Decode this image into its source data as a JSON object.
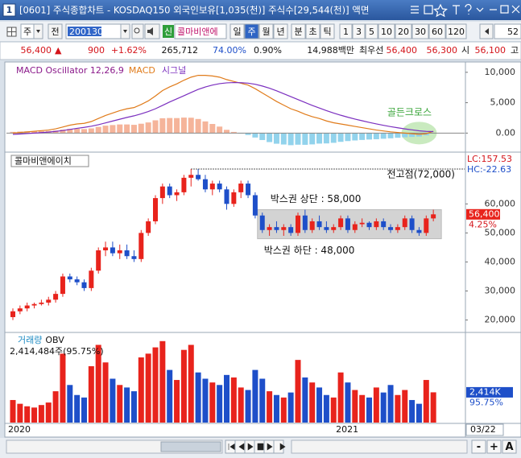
{
  "window": {
    "title": "[0601] 주식종합차트 - KOSDAQ150 외국인보유[1,035(천)] 주식수[29,544(천)] 액면",
    "number": "1"
  },
  "toolbar": {
    "unit": "주",
    "prev": "전",
    "code": "200130",
    "badge": "신",
    "name": "콜마비앤에",
    "periods": [
      "일",
      "주",
      "월",
      "년",
      "분",
      "초",
      "틱"
    ],
    "selected_period": "주",
    "intervals": [
      "1",
      "3",
      "5",
      "10",
      "20",
      "30",
      "60",
      "120"
    ],
    "count": "52"
  },
  "quote": {
    "price": "56,400",
    "arrow": "▲",
    "change": "900",
    "change_pct": "+1.62%",
    "volume": "265,712",
    "ratio1": "74.00%",
    "ratio2": "0.90%",
    "amount": "14,988백만",
    "best_label": "최우선",
    "ask": "56,400",
    "bid": "56,300",
    "open_label": "시",
    "open": "56,100",
    "high_label": "고"
  },
  "chart_data": [
    {
      "type": "macd",
      "title": "MACD Oscillator 12,26,9",
      "title_color": "#8b1a8b",
      "ylim": [
        -3000,
        11300
      ],
      "yticks": [
        {
          "value": 10000,
          "label": "10,000"
        },
        {
          "value": 5000,
          "label": "5,000"
        },
        {
          "value": 0,
          "label": "0.00"
        }
      ],
      "oscillator_colors": {
        "positive": "#f5b49a",
        "negative": "#92d3ec"
      },
      "oscillator": [
        200,
        250,
        280,
        300,
        320,
        340,
        420,
        580,
        700,
        720,
        660,
        770,
        1020,
        1220,
        1320,
        1420,
        1420,
        1360,
        1540,
        1750,
        2100,
        2440,
        2480,
        2470,
        2550,
        2530,
        2320,
        1920,
        1500,
        1070,
        540,
        190,
        -90,
        -310,
        -730,
        -1140,
        -1480,
        -1750,
        -1880,
        -1990,
        -1910,
        -1930,
        -1860,
        -1730,
        -1700,
        -1600,
        -1440,
        -1310,
        -1210,
        -1130,
        -1060,
        -1010,
        -930,
        -860,
        -770,
        -690,
        -630,
        -580,
        -380,
        60
      ],
      "series": [
        {
          "name": "MACD",
          "color": "#e07b1a",
          "values": [
            0,
            100,
            200,
            300,
            400,
            500,
            700,
            1000,
            1300,
            1500,
            1600,
            1900,
            2400,
            2900,
            3300,
            3700,
            4000,
            4200,
            4700,
            5300,
            6100,
            7000,
            7600,
            8100,
            8700,
            9200,
            9500,
            9500,
            9400,
            9200,
            8800,
            8500,
            8200,
            7900,
            7300,
            6600,
            5900,
            5200,
            4600,
            4000,
            3600,
            3100,
            2700,
            2400,
            2000,
            1700,
            1500,
            1300,
            1100,
            900,
            700,
            500,
            350,
            200,
            100,
            0,
            -100,
            -200,
            -100,
            300
          ]
        },
        {
          "name": "시그널",
          "color": "#7b2fbf",
          "values": [
            -200,
            -150,
            -80,
            0,
            80,
            160,
            280,
            420,
            600,
            780,
            940,
            1130,
            1380,
            1680,
            1980,
            2280,
            2580,
            2840,
            3160,
            3550,
            4000,
            4560,
            5120,
            5630,
            6150,
            6670,
            7180,
            7580,
            7900,
            8130,
            8260,
            8310,
            8290,
            8210,
            8030,
            7740,
            7380,
            6950,
            6480,
            5990,
            5510,
            5030,
            4560,
            4130,
            3700,
            3300,
            2940,
            2610,
            2310,
            2030,
            1760,
            1510,
            1280,
            1060,
            870,
            690,
            530,
            380,
            280,
            240
          ]
        }
      ],
      "annotation": {
        "text": "골든크로스",
        "index": 57,
        "value": 0,
        "color": "#3aa53a"
      }
    },
    {
      "type": "candlestick",
      "title": "콜마비앤에이치",
      "ylim": [
        16000,
        77000
      ],
      "yticks": [
        {
          "value": 60000,
          "label": "60,000"
        },
        {
          "value": 50000,
          "label": "50,000"
        },
        {
          "value": 40000,
          "label": "40,000"
        },
        {
          "value": 30000,
          "label": "30,000"
        },
        {
          "value": 20000,
          "label": "20,000"
        }
      ],
      "up_color": "#e8231c",
      "down_color": "#1e4fc9",
      "open": [
        21000,
        23000,
        24000,
        25000,
        25500,
        26000,
        27000,
        29000,
        35000,
        34000,
        33000,
        31000,
        37000,
        44000,
        45000,
        43000,
        44000,
        42000,
        41000,
        50000,
        54000,
        62000,
        66000,
        63000,
        64000,
        69000,
        70000,
        68500,
        65000,
        67000,
        65000,
        60000,
        64000,
        67000,
        63000,
        56000,
        51000,
        52000,
        51000,
        52000,
        50000,
        56000,
        51000,
        54000,
        52000,
        51000,
        52000,
        55000,
        51000,
        53000,
        53500,
        52000,
        54000,
        52000,
        51000,
        52000,
        55000,
        51000,
        50000,
        55000
      ],
      "high": [
        24000,
        25000,
        26000,
        26000,
        27000,
        28000,
        30000,
        36000,
        36000,
        35000,
        34000,
        38000,
        45000,
        47000,
        47000,
        46000,
        46000,
        44000,
        51000,
        55000,
        63000,
        67000,
        67000,
        65000,
        70000,
        72000,
        72000,
        70000,
        68000,
        68000,
        66000,
        65000,
        68000,
        68000,
        64000,
        57000,
        53000,
        54000,
        53000,
        53000,
        57000,
        58000,
        55000,
        56000,
        54000,
        53000,
        56000,
        56000,
        54000,
        55000,
        54000,
        55000,
        55000,
        53000,
        53000,
        56000,
        56000,
        52000,
        56000,
        58000
      ],
      "low": [
        20000,
        22000,
        23000,
        24000,
        25000,
        25000,
        26000,
        28000,
        33000,
        32000,
        30000,
        30000,
        36000,
        42000,
        42000,
        41000,
        41000,
        40000,
        40000,
        49000,
        53000,
        60000,
        62000,
        61000,
        63000,
        66000,
        68000,
        64000,
        63000,
        64000,
        58000,
        59000,
        62000,
        62000,
        55000,
        50000,
        49000,
        50000,
        49000,
        49000,
        49000,
        50000,
        50000,
        51000,
        50000,
        50000,
        51000,
        50000,
        50000,
        52000,
        51000,
        51000,
        51000,
        50000,
        50000,
        51000,
        50000,
        49000,
        49000,
        54000
      ],
      "close": [
        23000,
        24000,
        25000,
        25500,
        26000,
        27000,
        29000,
        35000,
        34000,
        33000,
        31000,
        37000,
        44000,
        45000,
        43000,
        44000,
        42000,
        41000,
        50000,
        54000,
        62000,
        66000,
        63000,
        64000,
        69000,
        70000,
        68500,
        65000,
        67000,
        65000,
        60000,
        64000,
        67000,
        63000,
        56000,
        51000,
        52000,
        51000,
        52000,
        50000,
        56000,
        51000,
        54000,
        52000,
        51000,
        52000,
        55000,
        51000,
        53000,
        53500,
        52000,
        54000,
        52000,
        51000,
        52000,
        55000,
        51000,
        50000,
        55000,
        56400
      ],
      "prev_high": {
        "label": "전고점(72,000)",
        "value": 72000,
        "from_index": 25
      },
      "box": {
        "upper_label": "박스권 상단 : 58,000",
        "upper": 58000,
        "lower_label": "박스권 하단 : 48,000",
        "lower": 48000,
        "from_index": 35
      },
      "lc_label": "LC:157.53",
      "hc_label": "HC:-22.63",
      "last_price": {
        "value": 56400,
        "label": "56,400",
        "pct": "4.25%"
      }
    },
    {
      "type": "volume",
      "legend": [
        "거래량",
        "OBV"
      ],
      "info": "2,414,484주(95.75%)",
      "ylim": [
        0,
        7000000
      ],
      "categories": [
        "2020",
        null,
        null,
        null,
        null,
        null,
        null,
        null,
        null,
        null,
        null,
        null,
        null,
        null,
        null,
        null,
        null,
        null,
        null,
        null,
        null,
        null,
        null,
        null,
        null,
        null,
        null,
        null,
        null,
        null,
        null,
        null,
        null,
        null,
        null,
        null,
        null,
        null,
        null,
        null,
        null,
        null,
        null,
        null,
        null,
        null,
        "2021",
        null,
        null,
        null,
        null,
        null,
        null,
        null,
        null,
        null,
        null,
        null,
        null,
        null
      ],
      "values": [
        1800000,
        1500000,
        1300000,
        1200000,
        1400000,
        1600000,
        2500000,
        5500000,
        3000000,
        2200000,
        2000000,
        4500000,
        6200000,
        4800000,
        3500000,
        3000000,
        2800000,
        2500000,
        5200000,
        5500000,
        6000000,
        6500000,
        4200000,
        3400000,
        5800000,
        6200000,
        4000000,
        3500000,
        3200000,
        3000000,
        3800000,
        3600000,
        2800000,
        2600000,
        4200000,
        3500000,
        2500000,
        2200000,
        2000000,
        2400000,
        5000000,
        3600000,
        3200000,
        2800000,
        2200000,
        2000000,
        4000000,
        3200000,
        2600000,
        2200000,
        2000000,
        2800000,
        2400000,
        3000000,
        2200000,
        2600000,
        1800000,
        1500000,
        3400000,
        2414484
      ],
      "last_label": "2,414K",
      "last_pct": "95.75%",
      "current_date": "03/22"
    }
  ],
  "bottom_bar": {
    "buttons": [
      "-",
      "+",
      "A"
    ]
  }
}
